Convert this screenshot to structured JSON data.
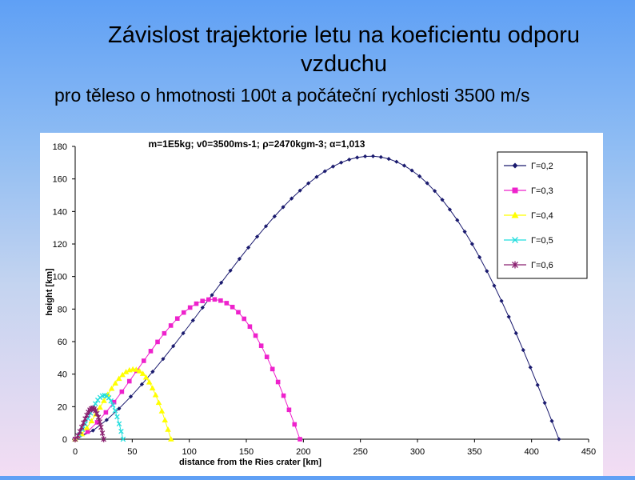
{
  "slide": {
    "title": "Závislost trajektorie letu na koeficientu odporu vzduchu",
    "subtitle": "pro těleso o hmotnosti 100t a počáteční rychlosti 3500 m/s"
  },
  "chart_data": {
    "type": "scatter",
    "title": "m=1E5kg; v0=3500ms-1; ρ=2470kgm-3; α=1,013",
    "xlabel": "distance from the Ries crater [km]",
    "ylabel": "height [km]",
    "xlim": [
      0,
      450
    ],
    "ylim": [
      0,
      180
    ],
    "x_ticks": [
      0,
      50,
      100,
      150,
      200,
      250,
      300,
      350,
      400,
      450
    ],
    "y_ticks": [
      0,
      20,
      40,
      60,
      80,
      100,
      120,
      140,
      160,
      180
    ],
    "grid": false,
    "legend_position": "top-right",
    "series": [
      {
        "name": "Γ=0,2",
        "color": "#1a1a6e",
        "marker": "diamond",
        "range": 424,
        "apex": 174,
        "points": 56
      },
      {
        "name": "Γ=0,3",
        "color": "#ee22cc",
        "marker": "square",
        "range": 197,
        "apex": 86,
        "points": 34
      },
      {
        "name": "Γ=0,4",
        "color": "#ffff00",
        "marker": "triangle",
        "range": 84,
        "apex": 43,
        "points": 26
      },
      {
        "name": "Γ=0,5",
        "color": "#22dddd",
        "marker": "x",
        "range": 42,
        "apex": 27,
        "points": 20
      },
      {
        "name": "Γ=0,6",
        "color": "#8a2070",
        "marker": "star",
        "range": 25,
        "apex": 19,
        "points": 18
      }
    ]
  }
}
